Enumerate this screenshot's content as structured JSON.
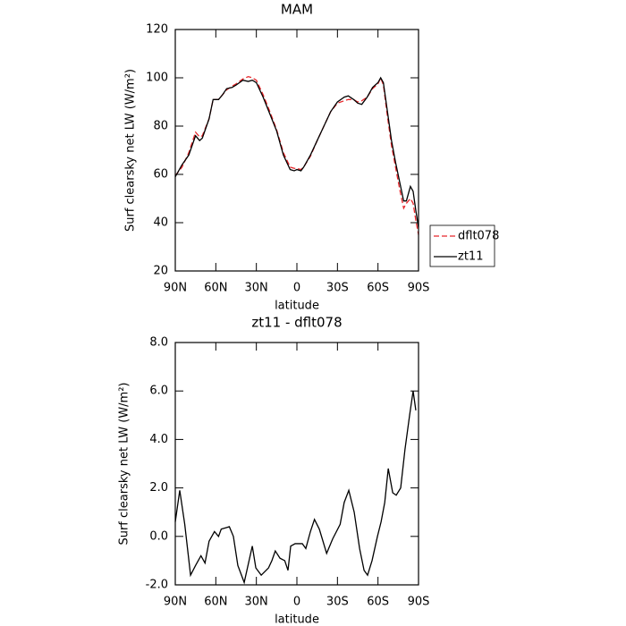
{
  "chart_data": [
    {
      "type": "line",
      "title": "MAM",
      "xlabel": "latitude",
      "ylabel": "Surf clearsky net LW (W/m²)",
      "x": [
        90,
        85,
        80,
        75,
        72,
        70,
        65,
        62,
        58,
        55,
        52,
        48,
        45,
        40,
        36,
        33,
        30,
        25,
        20,
        15,
        10,
        5,
        2,
        0,
        -3,
        -5,
        -10,
        -15,
        -20,
        -25,
        -30,
        -35,
        -38,
        -42,
        -45,
        -48,
        -52,
        -56,
        -60,
        -62,
        -64,
        -67,
        -70,
        -73,
        -76,
        -79,
        -81,
        -84,
        -86,
        -88,
        -90
      ],
      "series": [
        {
          "name": "dflt078",
          "color": "#e8262a",
          "style": "dashed",
          "values": [
            59.5,
            63,
            69,
            77.5,
            75.5,
            76,
            83,
            91,
            91,
            93,
            95,
            96.5,
            97.5,
            99.5,
            100.5,
            100,
            99,
            93,
            86,
            78.5,
            69,
            63,
            62.5,
            62.5,
            62,
            63,
            67.5,
            74,
            80,
            86,
            89.5,
            90.5,
            91,
            91,
            90,
            90.5,
            92,
            95.5,
            97.5,
            100,
            97,
            84,
            72,
            63,
            54,
            46,
            48,
            50,
            48,
            41,
            35
          ]
        },
        {
          "name": "zt11",
          "color": "#000000",
          "style": "solid",
          "values": [
            59,
            64,
            68,
            76,
            74,
            75,
            83,
            91,
            91,
            93,
            95.5,
            96,
            97,
            99,
            98.5,
            99,
            98,
            92,
            85,
            78,
            68,
            62,
            61.5,
            62,
            61.5,
            63,
            68,
            74,
            80,
            86,
            90,
            92,
            92.5,
            91,
            89.5,
            89,
            92,
            96,
            98,
            100,
            98,
            86,
            74,
            65,
            57,
            49,
            49,
            55,
            53,
            45,
            38
          ]
        }
      ],
      "xlim": [
        90,
        -90
      ],
      "xticks": [
        {
          "value": 90,
          "label": "90N"
        },
        {
          "value": 60,
          "label": "60N"
        },
        {
          "value": 30,
          "label": "30N"
        },
        0,
        {
          "value": -30,
          "label": "30S"
        },
        {
          "value": -60,
          "label": "60S"
        },
        {
          "value": -90,
          "label": "90S"
        }
      ],
      "ylim": [
        20,
        120
      ],
      "yticks": [
        20,
        40,
        60,
        80,
        100,
        120
      ],
      "legend": "right"
    },
    {
      "type": "line",
      "title": "zt11 - dflt078",
      "xlabel": "latitude",
      "ylabel": "Surf clearsky net LW (W/m²)",
      "x": [
        90,
        86.7,
        83,
        78.7,
        75,
        71,
        68,
        65,
        61,
        58,
        56,
        50,
        47,
        43.7,
        39,
        33,
        30.4,
        26.4,
        21,
        18.5,
        16,
        12.5,
        9,
        6.6,
        4.6,
        1.3,
        -4,
        -6.6,
        -10,
        -13,
        -16.6,
        -22,
        -26.5,
        -32,
        -35,
        -38.4,
        -42.4,
        -46.4,
        -49.7,
        -52.3,
        -55.6,
        -59.6,
        -62.3,
        -65,
        -67.6,
        -70.9,
        -73.5,
        -76.8,
        -80,
        -83.4,
        -86,
        -88
      ],
      "values": [
        0.6,
        1.9,
        0.5,
        -1.6,
        -1.2,
        -0.8,
        -1.1,
        -0.2,
        0.2,
        0.0,
        0.3,
        0.4,
        0.0,
        -1.2,
        -1.9,
        -0.4,
        -1.3,
        -1.6,
        -1.3,
        -1.0,
        -0.6,
        -0.9,
        -1.0,
        -1.4,
        -0.4,
        -0.3,
        -0.3,
        -0.5,
        0.2,
        0.7,
        0.3,
        -0.7,
        -0.1,
        0.5,
        1.4,
        1.9,
        1.0,
        -0.5,
        -1.4,
        -1.6,
        -1.0,
        0.0,
        0.6,
        1.4,
        2.8,
        1.8,
        1.7,
        2.0,
        3.6,
        5.0,
        6.0,
        5.2
      ],
      "color": "#000000",
      "xlim": [
        90,
        -90
      ],
      "xticks": [
        {
          "value": 90,
          "label": "90N"
        },
        {
          "value": 60,
          "label": "60N"
        },
        {
          "value": 30,
          "label": "30N"
        },
        0,
        {
          "value": -30,
          "label": "30S"
        },
        {
          "value": -60,
          "label": "60S"
        },
        {
          "value": -90,
          "label": "90S"
        }
      ],
      "ylim": [
        -2,
        8
      ],
      "yticks": [
        {
          "value": -2,
          "label": "-2.0"
        },
        {
          "value": 0,
          "label": "0.0"
        },
        {
          "value": 2,
          "label": "2.0"
        },
        {
          "value": 4,
          "label": "4.0"
        },
        {
          "value": 6,
          "label": "6.0"
        },
        {
          "value": 8,
          "label": "8.0"
        }
      ]
    }
  ]
}
